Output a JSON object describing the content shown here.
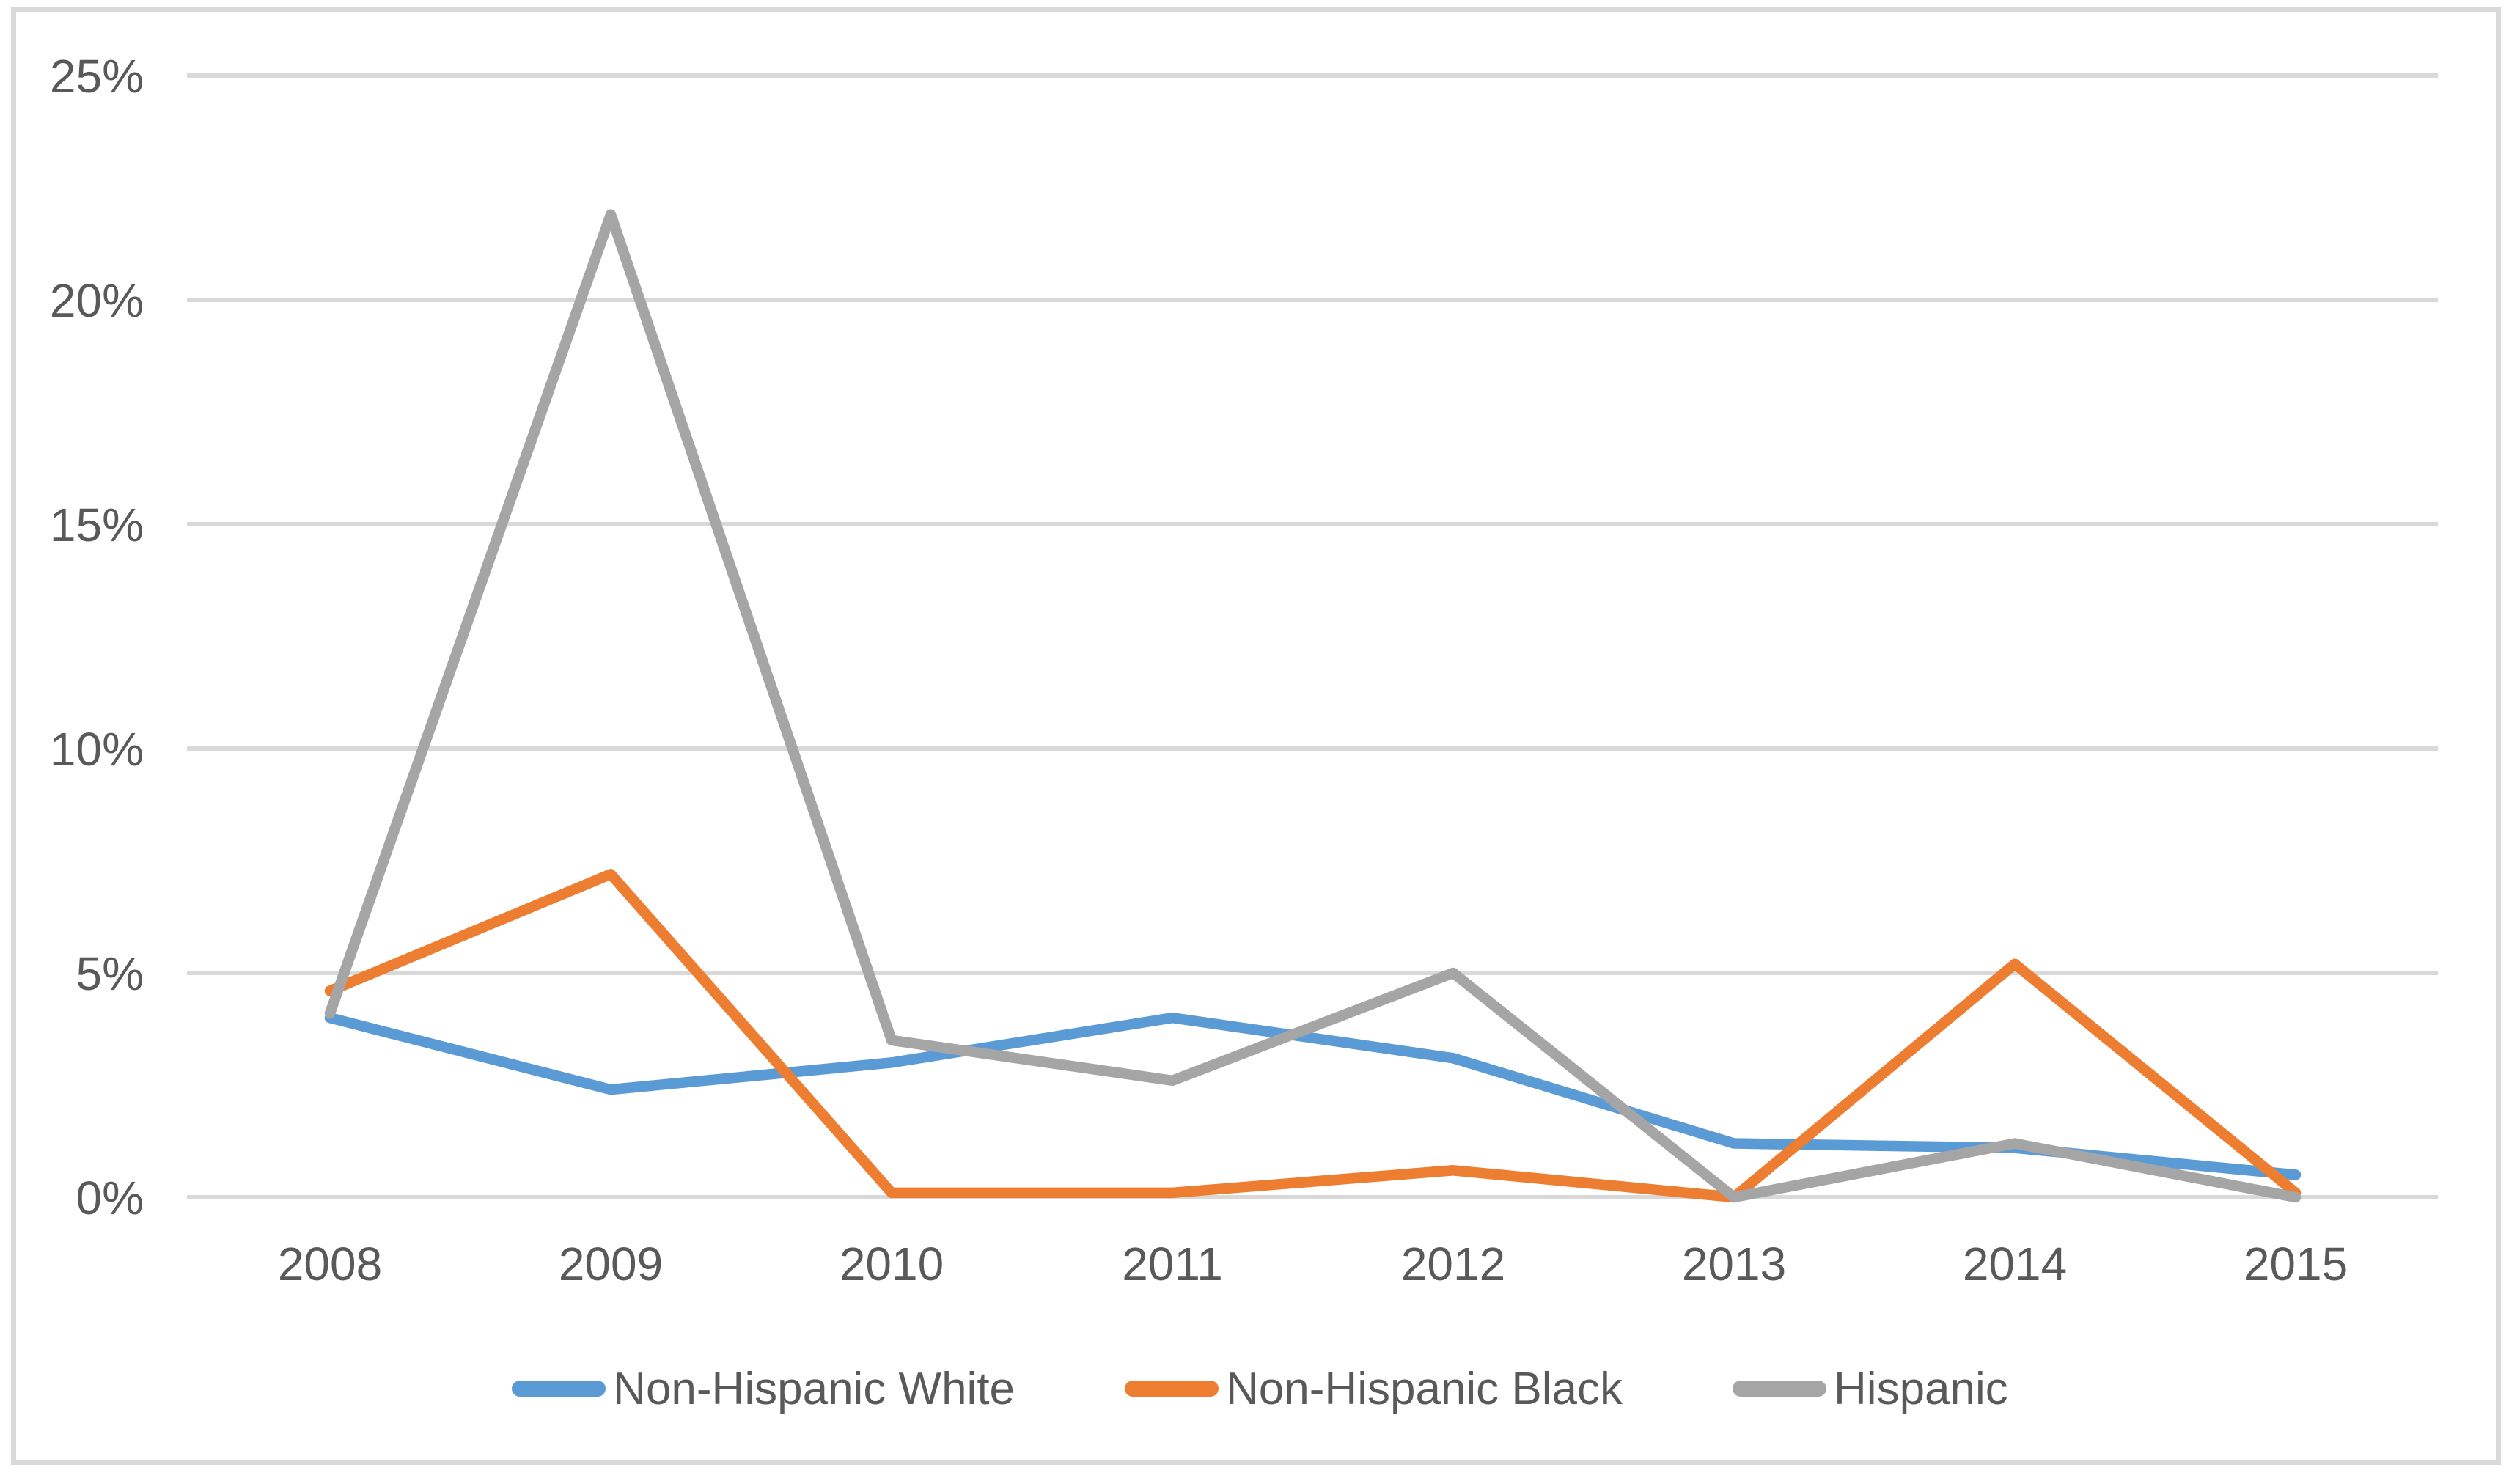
{
  "chart_data": {
    "type": "line",
    "title": "",
    "xlabel": "",
    "ylabel": "",
    "x": [
      "2008",
      "2009",
      "2010",
      "2011",
      "2012",
      "2013",
      "2014",
      "2015"
    ],
    "series": [
      {
        "name": "Non-Hispanic White",
        "color": "#5B9BD5",
        "values": [
          4.0,
          2.4,
          3.0,
          4.0,
          3.1,
          1.2,
          1.1,
          0.5
        ]
      },
      {
        "name": "Non-Hispanic Black",
        "color": "#ED7D31",
        "values": [
          4.6,
          7.2,
          0.1,
          0.1,
          0.6,
          0.0,
          5.2,
          0.1
        ]
      },
      {
        "name": "Hispanic",
        "color": "#A5A5A5",
        "values": [
          4.1,
          21.9,
          3.5,
          2.6,
          5.0,
          0.0,
          1.2,
          0.0
        ]
      }
    ],
    "ylim": [
      0,
      25
    ],
    "yticks": {
      "values": [
        0,
        5,
        10,
        15,
        20,
        25
      ],
      "labels": [
        "0%",
        "5%",
        "10%",
        "15%",
        "20%",
        "25%"
      ]
    },
    "grid": "horizontal",
    "gridline_color": "#D9D9D9",
    "tick_label_color": "#595959",
    "legend_position": "bottom",
    "line_width": 14.5
  }
}
